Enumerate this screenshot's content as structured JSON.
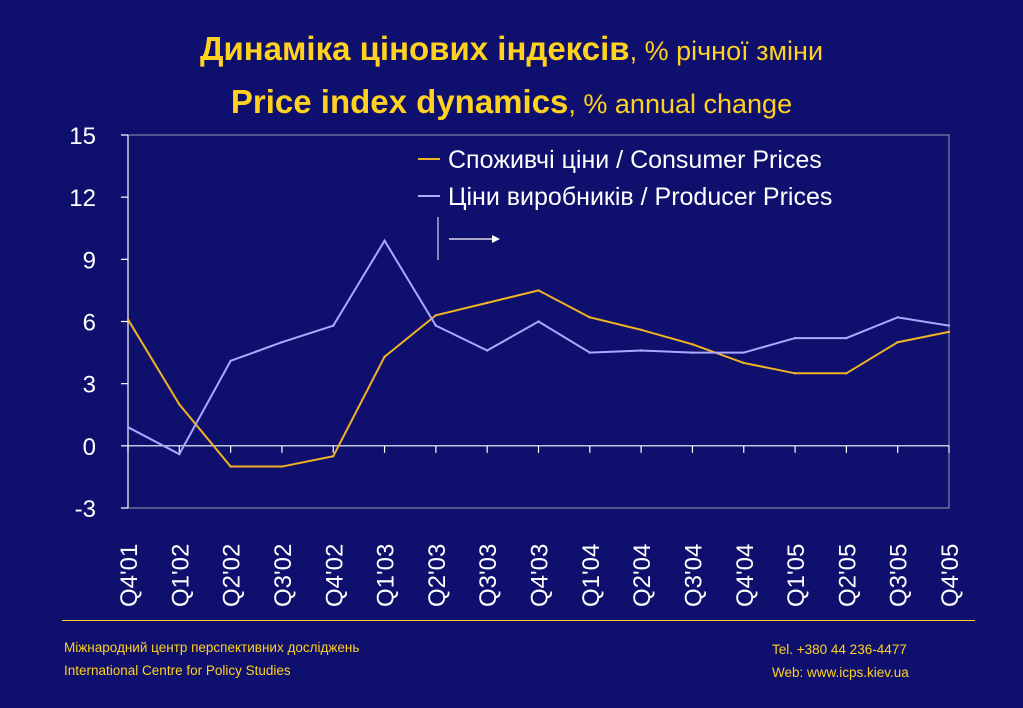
{
  "title": {
    "line1_bold": "Динаміка цінових індексів",
    "line1_rest": ", % річної зміни",
    "line2_bold": "Price index dynamics",
    "line2_rest": ", % annual change"
  },
  "chart_data": {
    "type": "line",
    "categories": [
      "Q4'01",
      "Q1'02",
      "Q2'02",
      "Q3'02",
      "Q4'02",
      "Q1'03",
      "Q2'03",
      "Q3'03",
      "Q4'03",
      "Q1'04",
      "Q2'04",
      "Q3'04",
      "Q4'04",
      "Q1'05",
      "Q2'05",
      "Q3'05",
      "Q4'05"
    ],
    "series": [
      {
        "name": "Споживчі ціни / Consumer Prices",
        "color": "#f0b323",
        "values": [
          6.1,
          2.0,
          -1.0,
          -1.0,
          -0.5,
          4.3,
          6.3,
          6.9,
          7.5,
          6.2,
          5.6,
          4.9,
          4.0,
          3.5,
          3.5,
          5.0,
          5.5
        ]
      },
      {
        "name": "Ціни виробників / Producer Prices",
        "color": "#a9a9ff",
        "values": [
          0.9,
          -0.4,
          4.1,
          5.0,
          5.8,
          9.9,
          5.8,
          4.6,
          6.0,
          4.5,
          4.6,
          4.5,
          4.5,
          5.2,
          5.2,
          6.2,
          5.8
        ]
      }
    ],
    "yticks": [
      15,
      12,
      9,
      6,
      3,
      0,
      -3
    ],
    "ylim": [
      -3,
      15
    ],
    "grid": false,
    "legend_position": "top-right",
    "plot_background": "#0f0f6e",
    "axis_color": "#ffffff"
  },
  "footer": {
    "org_ua": "Міжнародний центр перспективних досліджень",
    "org_en": "International Centre for Policy Studies",
    "tel": "Tel. +380 44 236-4477",
    "web": "Web: www.icps.kiev.ua"
  }
}
